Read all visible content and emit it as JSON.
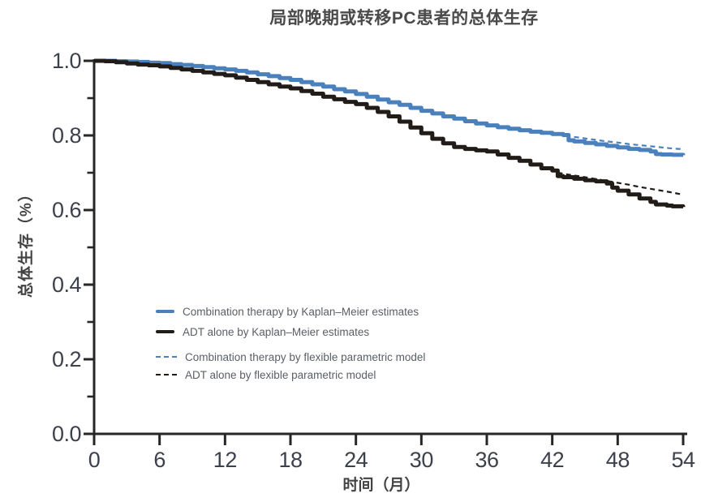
{
  "title": "局部晚期或转移PC患者的总体生存",
  "colors": {
    "combination_blue": "#4a80bc",
    "adt_black": "#221c18",
    "axis": "#262626",
    "title_text": "#4a4a4a",
    "axis_label_text": "#434343",
    "tick_text": "#3c414b",
    "legend_text": "#5a5f66"
  },
  "chart_data": {
    "type": "line",
    "subtype": "kaplan-meier-survival",
    "title": "局部晚期或转移PC患者的总体生存",
    "xlabel": "时间（月）",
    "ylabel": "总体生存（%）",
    "xlim": [
      0,
      54
    ],
    "ylim": [
      0.0,
      1.0
    ],
    "grid": false,
    "legend_position": "inside-center-left",
    "x_axis": {
      "label": "时间（月）",
      "tick_values": [
        0,
        6,
        12,
        18,
        24,
        30,
        36,
        42,
        48,
        54
      ],
      "tick_labels": [
        "0",
        "6",
        "12",
        "18",
        "24",
        "30",
        "36",
        "42",
        "48",
        "54"
      ]
    },
    "y_axis": {
      "label": "总体生存（%）",
      "tick_values": [
        1.0,
        0.8,
        0.6,
        0.4,
        0.2,
        0.0
      ],
      "tick_labels": [
        "1.0",
        "0.8",
        "0.6",
        "0.4",
        "0.2",
        "0.0"
      ],
      "minor_tick_values": [
        0.9,
        0.7,
        0.5,
        0.3,
        0.1
      ]
    },
    "series": [
      {
        "id": "combination-km",
        "name": "Combination therapy by Kaplan–Meier estimates",
        "style": "solid",
        "render": "step",
        "color_key": "combination_blue",
        "width": 5,
        "points": [
          [
            0,
            1.0
          ],
          [
            1,
            1.0
          ],
          [
            2,
            0.999
          ],
          [
            3,
            0.998
          ],
          [
            4,
            0.997
          ],
          [
            5,
            0.995
          ],
          [
            6,
            0.994
          ],
          [
            7,
            0.991
          ],
          [
            8,
            0.989
          ],
          [
            9,
            0.986
          ],
          [
            10,
            0.983
          ],
          [
            11,
            0.98
          ],
          [
            12,
            0.977
          ],
          [
            13,
            0.973
          ],
          [
            14,
            0.969
          ],
          [
            15,
            0.964
          ],
          [
            16,
            0.959
          ],
          [
            17,
            0.954
          ],
          [
            18,
            0.949
          ],
          [
            19,
            0.943
          ],
          [
            20,
            0.937
          ],
          [
            21,
            0.931
          ],
          [
            22,
            0.924
          ],
          [
            23,
            0.918
          ],
          [
            24,
            0.911
          ],
          [
            25,
            0.904
          ],
          [
            26,
            0.896
          ],
          [
            27,
            0.889
          ],
          [
            28,
            0.882
          ],
          [
            29,
            0.874
          ],
          [
            30,
            0.866
          ],
          [
            31,
            0.859
          ],
          [
            32,
            0.851
          ],
          [
            33,
            0.845
          ],
          [
            34,
            0.838
          ],
          [
            35,
            0.832
          ],
          [
            36,
            0.827
          ],
          [
            37,
            0.822
          ],
          [
            38,
            0.818
          ],
          [
            39,
            0.814
          ],
          [
            40,
            0.81
          ],
          [
            41,
            0.807
          ],
          [
            42,
            0.804
          ],
          [
            43,
            0.801
          ],
          [
            43.5,
            0.787
          ],
          [
            44,
            0.784
          ],
          [
            45,
            0.78
          ],
          [
            46,
            0.776
          ],
          [
            47,
            0.772
          ],
          [
            48,
            0.768
          ],
          [
            49,
            0.764
          ],
          [
            50,
            0.761
          ],
          [
            51,
            0.757
          ],
          [
            51.5,
            0.75
          ],
          [
            52,
            0.749
          ],
          [
            53,
            0.748
          ],
          [
            54,
            0.747
          ]
        ]
      },
      {
        "id": "adt-km",
        "name": "ADT alone by Kaplan–Meier estimates",
        "style": "solid",
        "render": "step",
        "color_key": "adt_black",
        "width": 5,
        "points": [
          [
            0,
            1.0
          ],
          [
            1,
            0.999
          ],
          [
            2,
            0.996
          ],
          [
            3,
            0.993
          ],
          [
            4,
            0.99
          ],
          [
            5,
            0.988
          ],
          [
            6,
            0.985
          ],
          [
            7,
            0.981
          ],
          [
            8,
            0.977
          ],
          [
            9,
            0.973
          ],
          [
            10,
            0.969
          ],
          [
            11,
            0.965
          ],
          [
            12,
            0.961
          ],
          [
            13,
            0.955
          ],
          [
            14,
            0.949
          ],
          [
            15,
            0.943
          ],
          [
            16,
            0.937
          ],
          [
            17,
            0.931
          ],
          [
            18,
            0.926
          ],
          [
            19,
            0.919
          ],
          [
            20,
            0.912
          ],
          [
            21,
            0.904
          ],
          [
            22,
            0.897
          ],
          [
            23,
            0.89
          ],
          [
            24,
            0.884
          ],
          [
            25,
            0.874
          ],
          [
            26,
            0.863
          ],
          [
            27,
            0.851
          ],
          [
            28,
            0.837
          ],
          [
            29,
            0.821
          ],
          [
            30,
            0.806
          ],
          [
            31,
            0.791
          ],
          [
            32,
            0.779
          ],
          [
            33,
            0.769
          ],
          [
            34,
            0.764
          ],
          [
            35,
            0.76
          ],
          [
            36,
            0.757
          ],
          [
            37,
            0.749
          ],
          [
            38,
            0.74
          ],
          [
            39,
            0.732
          ],
          [
            40,
            0.722
          ],
          [
            41,
            0.712
          ],
          [
            42,
            0.706
          ],
          [
            42.5,
            0.691
          ],
          [
            43,
            0.688
          ],
          [
            44,
            0.684
          ],
          [
            45,
            0.68
          ],
          [
            46,
            0.677
          ],
          [
            47,
            0.671
          ],
          [
            47.5,
            0.66
          ],
          [
            48,
            0.652
          ],
          [
            49,
            0.642
          ],
          [
            50,
            0.631
          ],
          [
            51,
            0.622
          ],
          [
            51.5,
            0.615
          ],
          [
            52.5,
            0.612
          ],
          [
            53,
            0.61
          ],
          [
            54,
            0.608
          ]
        ]
      },
      {
        "id": "combination-parametric",
        "name": "Combination therapy by flexible parametric model",
        "style": "dashed",
        "render": "linear",
        "color_key": "combination_blue",
        "width": 2.2,
        "points": [
          [
            44,
            0.796
          ],
          [
            45,
            0.792
          ],
          [
            46,
            0.788
          ],
          [
            47,
            0.784
          ],
          [
            48,
            0.781
          ],
          [
            49,
            0.777
          ],
          [
            50,
            0.774
          ],
          [
            51,
            0.771
          ],
          [
            52,
            0.768
          ],
          [
            53,
            0.765
          ],
          [
            54,
            0.763
          ]
        ]
      },
      {
        "id": "adt-parametric",
        "name": "ADT alone by flexible parametric model",
        "style": "dashed",
        "render": "linear",
        "color_key": "adt_black",
        "width": 2.2,
        "points": [
          [
            42.5,
            0.7
          ],
          [
            43.5,
            0.695
          ],
          [
            45,
            0.688
          ],
          [
            46,
            0.683
          ],
          [
            47,
            0.678
          ],
          [
            48,
            0.673
          ],
          [
            49,
            0.668
          ],
          [
            50,
            0.662
          ],
          [
            51,
            0.657
          ],
          [
            52,
            0.652
          ],
          [
            53,
            0.647
          ],
          [
            54,
            0.641
          ]
        ]
      }
    ]
  }
}
